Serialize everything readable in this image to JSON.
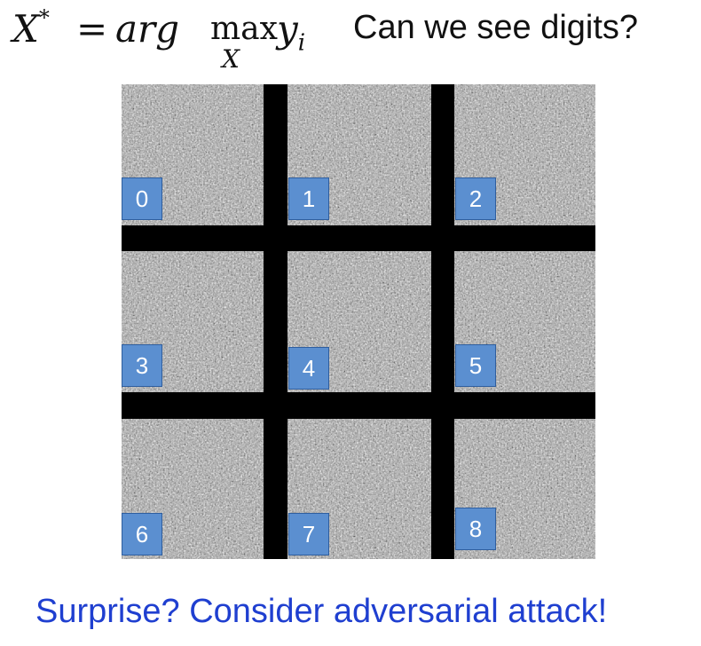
{
  "formula": {
    "lhs": "X",
    "lhs_sup": "*",
    "equals": "=",
    "arg": "arg",
    "max": "max",
    "max_sub": "X",
    "y": "y",
    "y_sub": "i"
  },
  "question": "Can we see digits?",
  "grid": {
    "labels": [
      "0",
      "1",
      "2",
      "3",
      "4",
      "5",
      "6",
      "7",
      "8"
    ],
    "label_color": "#5b8fd0",
    "divider_color": "#000000"
  },
  "footer_text": "Surprise? Consider adversarial attack!",
  "footer_color": "#1f3fd0"
}
